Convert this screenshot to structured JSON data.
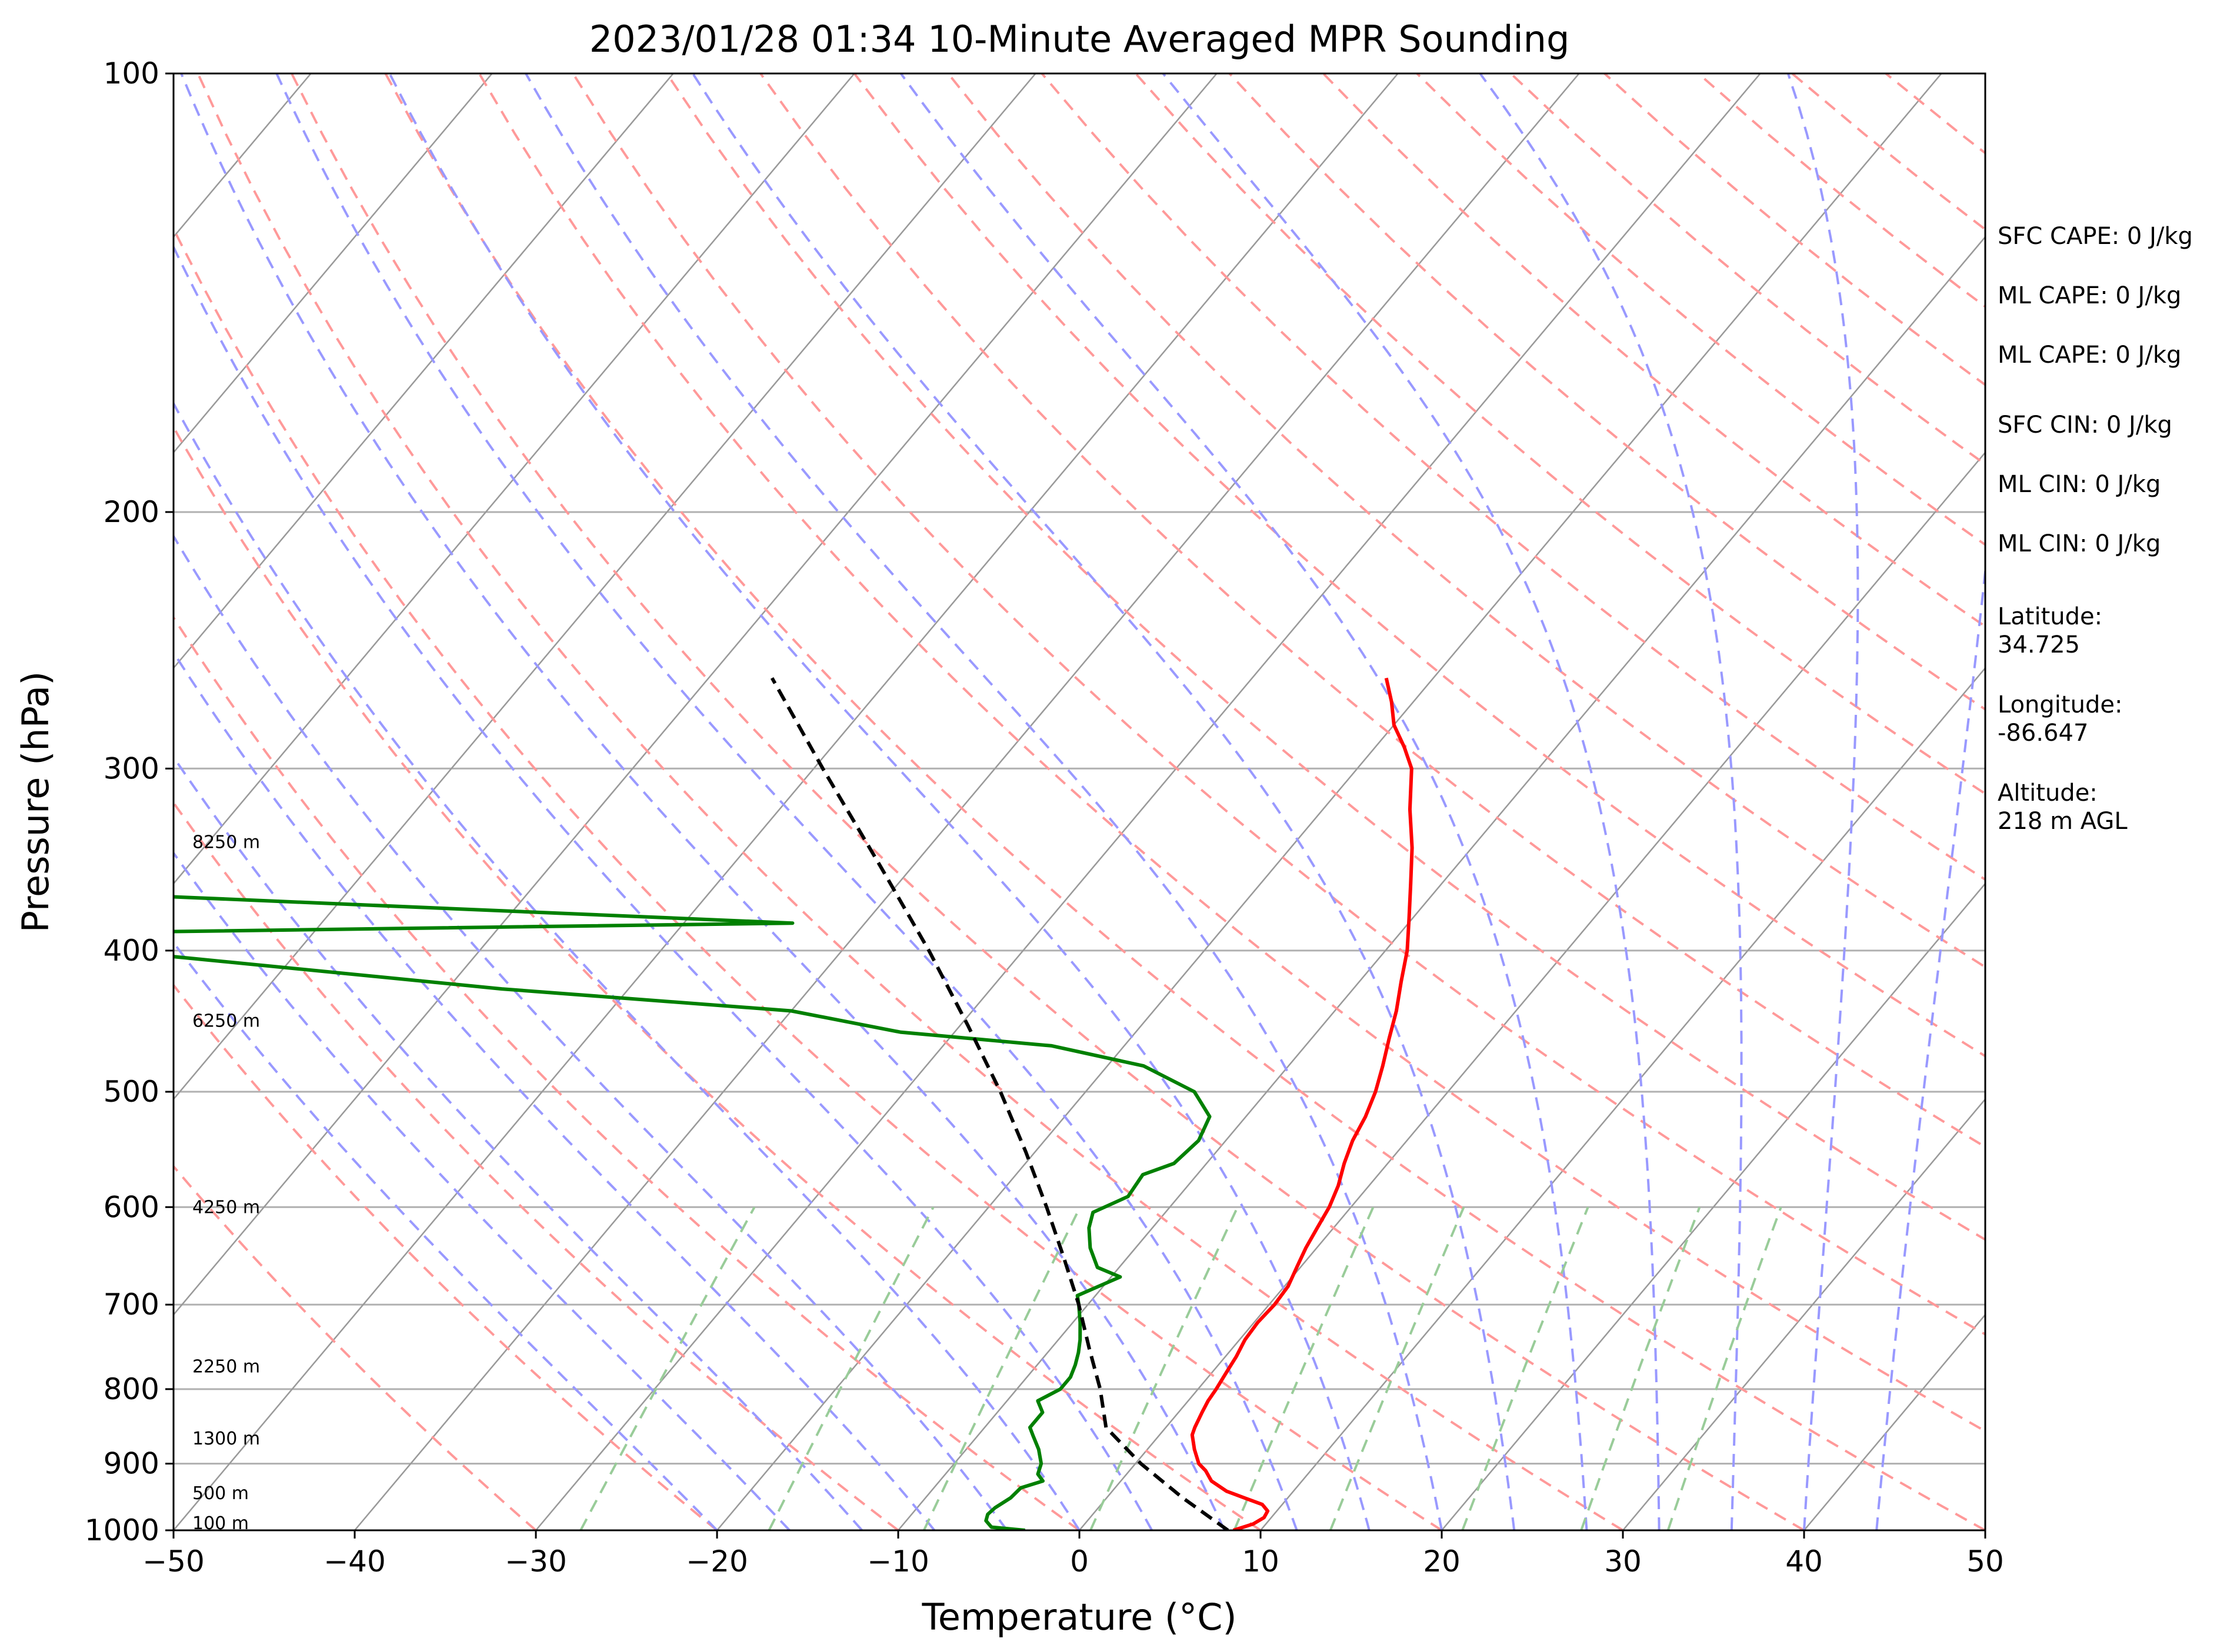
{
  "chart_data": {
    "type": "skew-t",
    "title": "2023/01/28 01:34 10-Minute Averaged MPR Sounding",
    "xlabel": "Temperature (°C)",
    "ylabel": "Pressure (hPa)",
    "xlim": [
      -50,
      50
    ],
    "ylim": [
      1000,
      100
    ],
    "y_scale": "log",
    "x_ticks": [
      -50,
      -40,
      -30,
      -20,
      -10,
      0,
      10,
      20,
      30,
      40,
      50
    ],
    "x_tick_labels": [
      "−50",
      "−40",
      "−30",
      "−20",
      "−10",
      "0",
      "10",
      "20",
      "30",
      "40",
      "50"
    ],
    "y_ticks": [
      100,
      200,
      300,
      400,
      500,
      600,
      700,
      800,
      900,
      1000
    ],
    "y_tick_labels": [
      "100",
      "200",
      "300",
      "400",
      "500",
      "600",
      "700",
      "800",
      "900",
      "1000"
    ],
    "grid": true,
    "series": [
      {
        "role": "temperature",
        "color": "#ff0000",
        "style": "solid",
        "points": [
          [
            1000,
            8.5
          ],
          [
            990,
            9.3
          ],
          [
            980,
            9.6
          ],
          [
            970,
            9.5
          ],
          [
            960,
            8.9
          ],
          [
            950,
            7.6
          ],
          [
            940,
            6.3
          ],
          [
            925,
            5.0
          ],
          [
            910,
            4.2
          ],
          [
            900,
            3.5
          ],
          [
            880,
            2.6
          ],
          [
            860,
            1.8
          ],
          [
            850,
            1.6
          ],
          [
            830,
            1.3
          ],
          [
            815,
            1.1
          ],
          [
            800,
            1.0
          ],
          [
            780,
            0.8
          ],
          [
            760,
            0.6
          ],
          [
            740,
            0.3
          ],
          [
            720,
            0.2
          ],
          [
            700,
            0.3
          ],
          [
            680,
            0.2
          ],
          [
            660,
            -0.2
          ],
          [
            640,
            -0.6
          ],
          [
            620,
            -0.9
          ],
          [
            600,
            -1.2
          ],
          [
            580,
            -1.7
          ],
          [
            560,
            -2.4
          ],
          [
            540,
            -3.0
          ],
          [
            520,
            -3.4
          ],
          [
            500,
            -4.0
          ],
          [
            480,
            -4.8
          ],
          [
            460,
            -5.7
          ],
          [
            440,
            -6.6
          ],
          [
            420,
            -7.7
          ],
          [
            400,
            -8.8
          ],
          [
            380,
            -10.2
          ],
          [
            360,
            -11.7
          ],
          [
            340,
            -13.3
          ],
          [
            320,
            -15.2
          ],
          [
            300,
            -17.0
          ],
          [
            290,
            -18.4
          ],
          [
            280,
            -20.0
          ],
          [
            270,
            -21.2
          ],
          [
            260,
            -22.6
          ]
        ]
      },
      {
        "role": "dewpoint",
        "color": "#008000",
        "style": "solid",
        "points": [
          [
            1000,
            -3.0
          ],
          [
            995,
            -5.0
          ],
          [
            985,
            -5.6
          ],
          [
            975,
            -5.8
          ],
          [
            965,
            -5.7
          ],
          [
            950,
            -5.3
          ],
          [
            935,
            -5.2
          ],
          [
            925,
            -4.3
          ],
          [
            915,
            -4.9
          ],
          [
            900,
            -5.2
          ],
          [
            880,
            -6.0
          ],
          [
            860,
            -7.0
          ],
          [
            850,
            -7.5
          ],
          [
            830,
            -7.5
          ],
          [
            815,
            -8.3
          ],
          [
            800,
            -7.6
          ],
          [
            785,
            -7.6
          ],
          [
            770,
            -7.9
          ],
          [
            755,
            -8.3
          ],
          [
            740,
            -8.8
          ],
          [
            720,
            -9.6
          ],
          [
            700,
            -10.5
          ],
          [
            690,
            -11.0
          ],
          [
            670,
            -9.5
          ],
          [
            660,
            -11.2
          ],
          [
            640,
            -12.5
          ],
          [
            620,
            -13.5
          ],
          [
            605,
            -14.0
          ],
          [
            590,
            -12.8
          ],
          [
            570,
            -13.0
          ],
          [
            560,
            -11.8
          ],
          [
            540,
            -11.5
          ],
          [
            520,
            -12.0
          ],
          [
            500,
            -14.0
          ],
          [
            480,
            -18.0
          ],
          [
            465,
            -24.0
          ],
          [
            455,
            -33.0
          ],
          [
            440,
            -40.0
          ],
          [
            425,
            -57.0
          ],
          [
            390,
            -90.0
          ],
          [
            383,
            -44.0
          ],
          [
            365,
            -85.0
          ]
        ]
      },
      {
        "role": "parcel",
        "color": "#000000",
        "style": "dashed",
        "points": [
          [
            1000,
            8.2
          ],
          [
            950,
            4.2
          ],
          [
            900,
            0.3
          ],
          [
            850,
            -3.3
          ],
          [
            800,
            -5.4
          ],
          [
            750,
            -7.9
          ],
          [
            700,
            -10.5
          ],
          [
            650,
            -13.5
          ],
          [
            600,
            -16.8
          ],
          [
            550,
            -20.5
          ],
          [
            500,
            -24.7
          ],
          [
            450,
            -29.6
          ],
          [
            400,
            -35.2
          ],
          [
            350,
            -41.8
          ],
          [
            300,
            -49.5
          ],
          [
            260,
            -56.5
          ]
        ]
      }
    ],
    "height_labels": [
      {
        "label": "100 m",
        "p": 989
      },
      {
        "label": "500 m",
        "p": 943
      },
      {
        "label": "1300 m",
        "p": 865
      },
      {
        "label": "2250 m",
        "p": 772
      },
      {
        "label": "4250 m",
        "p": 600
      },
      {
        "label": "6250 m",
        "p": 447
      },
      {
        "label": "8250 m",
        "p": 337
      }
    ],
    "info_panel": [
      "SFC CAPE: 0 J/kg",
      "ML CAPE: 0 J/kg",
      "ML CAPE: 0 J/kg",
      "SFC CIN: 0 J/kg",
      "ML CIN: 0 J/kg",
      "ML CIN: 0 J/kg",
      "Latitude:\n34.725",
      "Longitude:\n-86.647",
      "Altitude:\n218 m AGL"
    ],
    "colors": {
      "dry_adiabats": "#ff9999",
      "moist_adiabats": "#9999ff",
      "mixing_ratio": "#99cc99",
      "isotherms": "#999999",
      "isobars": "#b0b0b0"
    }
  }
}
